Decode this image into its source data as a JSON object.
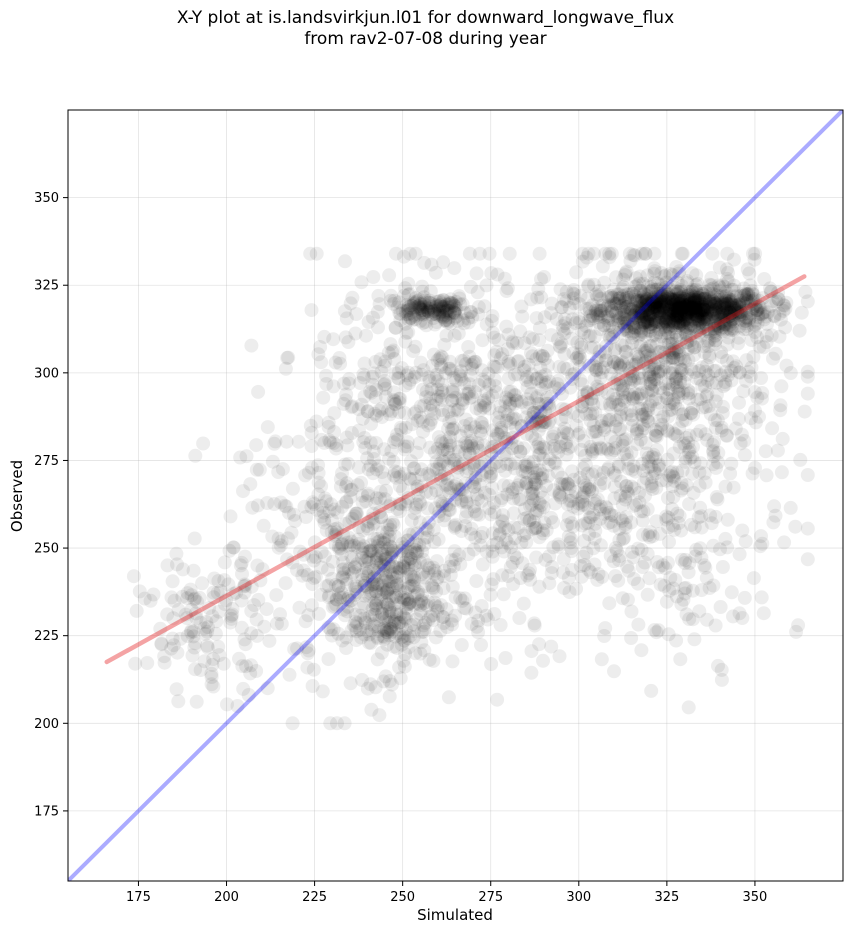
{
  "chart_data": {
    "type": "scatter",
    "title_lines": [
      "X-Y plot at is.landsvirkjun.l01 for downward_longwave_flux",
      "from rav2-07-08 during year"
    ],
    "xlabel": "Simulated",
    "ylabel": "Observed",
    "xlim": [
      155,
      375
    ],
    "ylim": [
      155,
      375
    ],
    "xticks": [
      175,
      200,
      225,
      250,
      275,
      300,
      325,
      350
    ],
    "yticks": [
      175,
      200,
      225,
      250,
      275,
      300,
      325,
      350
    ],
    "grid": true,
    "point_color": "#000000",
    "point_alpha": 0.07,
    "identity_line": {
      "from": [
        155,
        155
      ],
      "to": [
        375,
        375
      ],
      "color": "#0000ff"
    },
    "fit_line": {
      "from": [
        166,
        217.5
      ],
      "to": [
        364,
        327.5
      ],
      "color": "#e41a1c"
    },
    "clusters": [
      {
        "cx": 330,
        "cy": 318,
        "sx": 12,
        "sy": 3,
        "n": 900
      },
      {
        "cx": 325,
        "cy": 305,
        "sx": 15,
        "sy": 15,
        "n": 600
      },
      {
        "cx": 300,
        "cy": 282,
        "sx": 22,
        "sy": 25,
        "n": 500
      },
      {
        "cx": 245,
        "cy": 238,
        "sx": 8,
        "sy": 12,
        "n": 400
      },
      {
        "cx": 260,
        "cy": 290,
        "sx": 18,
        "sy": 20,
        "n": 450
      },
      {
        "cx": 258,
        "cy": 318,
        "sx": 6,
        "sy": 2,
        "n": 150
      },
      {
        "cx": 280,
        "cy": 265,
        "sx": 20,
        "sy": 20,
        "n": 350
      },
      {
        "cx": 225,
        "cy": 250,
        "sx": 15,
        "sy": 22,
        "n": 200
      },
      {
        "cx": 195,
        "cy": 228,
        "sx": 10,
        "sy": 10,
        "n": 120
      },
      {
        "cx": 330,
        "cy": 250,
        "sx": 15,
        "sy": 15,
        "n": 150
      }
    ]
  }
}
